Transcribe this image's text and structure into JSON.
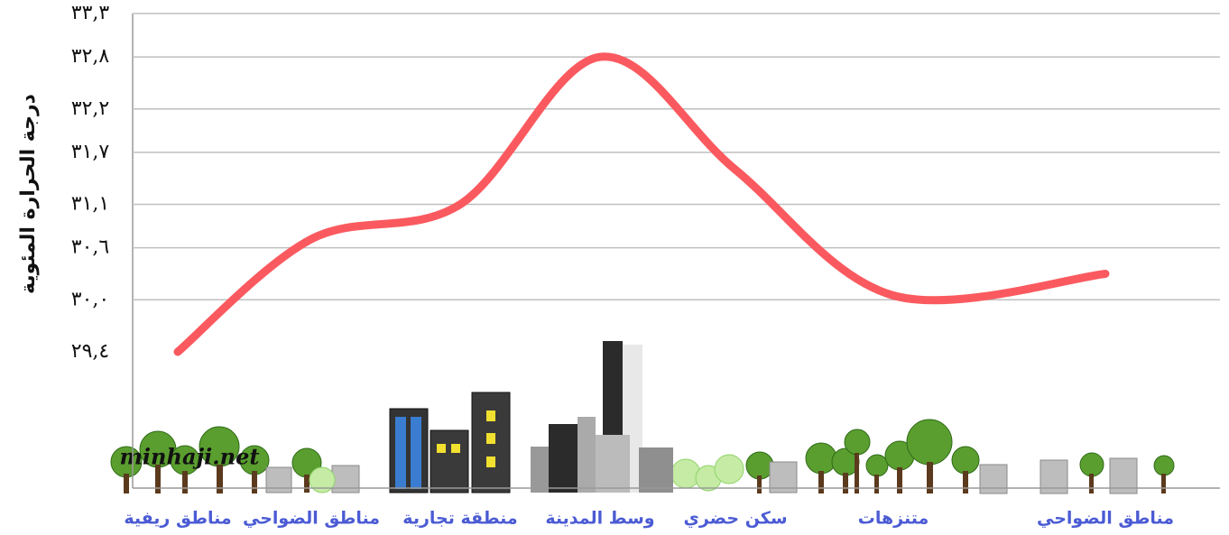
{
  "chart_data": {
    "type": "line",
    "y_label": "درجة الحرارة المئوية",
    "watermark": "minhaji.net",
    "categories": [
      "مناطق ريفية",
      "مناطق الضواحي",
      "منطقة تجارية",
      "وسط المدينة",
      "سكن حضري",
      "متنزهات",
      "مناطق الضواحي"
    ],
    "values": [
      29.4,
      30.7,
      31.1,
      32.8,
      31.5,
      30.05,
      30.3
    ],
    "color": "#fa5a5f",
    "ylim": [
      29.4,
      33.3
    ],
    "yticks": [
      {
        "value": 29.4,
        "label": "٢٩,٤"
      },
      {
        "value": 30.0,
        "label": "٣٠,٠"
      },
      {
        "value": 30.6,
        "label": "٣٠,٦"
      },
      {
        "value": 31.1,
        "label": "٣١,١"
      },
      {
        "value": 31.7,
        "label": "٣١,٧"
      },
      {
        "value": 32.2,
        "label": "٣٢,٢"
      },
      {
        "value": 32.8,
        "label": "٣٢,٨"
      },
      {
        "value": 33.3,
        "label": "٣٣,٣"
      }
    ],
    "grid": true
  }
}
